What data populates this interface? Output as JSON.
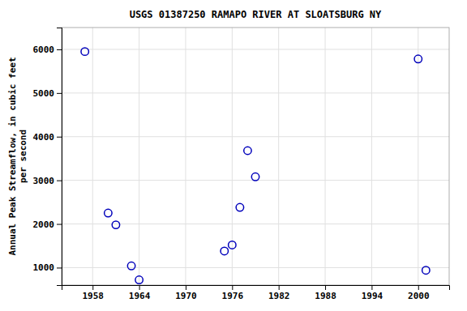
{
  "chart_data": {
    "type": "scatter",
    "title": "USGS 01387250 RAMAPO RIVER AT SLOATSBURG NY",
    "ylabel": [
      "Annual Peak Streamflow, in cubic feet",
      "per second"
    ],
    "x": [
      1957,
      1960,
      1961,
      1963,
      1964,
      1975,
      1976,
      1977,
      1978,
      1979,
      2000,
      2001
    ],
    "values": [
      5950,
      2250,
      1980,
      1040,
      720,
      1380,
      1520,
      2380,
      3680,
      3080,
      5780,
      940
    ],
    "xlim": [
      1954,
      2004
    ],
    "ylim": [
      600,
      6500
    ],
    "xticks": [
      1958,
      1964,
      1970,
      1976,
      1982,
      1988,
      1994,
      2000
    ],
    "yticks": [
      1000,
      2000,
      3000,
      4000,
      5000,
      6000
    ],
    "color": "#0000bb",
    "marker": "circle",
    "grid": true
  }
}
